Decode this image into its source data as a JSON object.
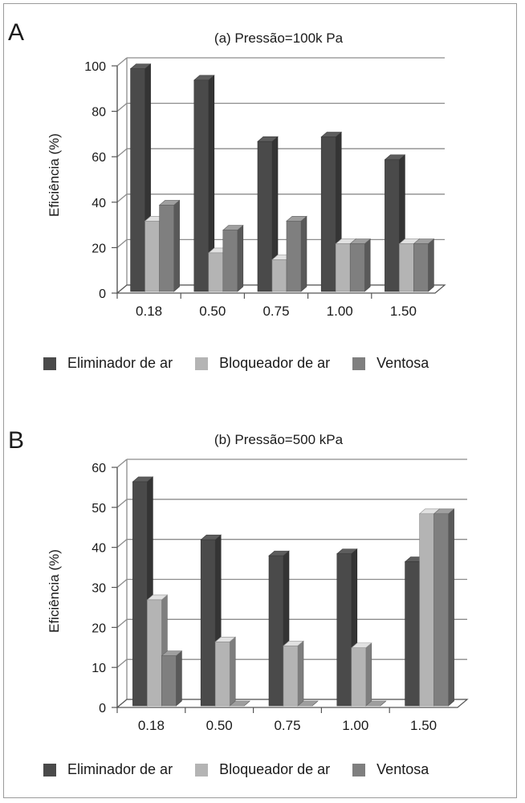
{
  "chart_data": [
    {
      "type": "bar",
      "panel_letter": "A",
      "title": "(a) Pressão=100k Pa",
      "ylabel": "Eficiência (%)",
      "xlabel": "",
      "ylim": [
        0,
        100
      ],
      "yticks": [
        0,
        20,
        40,
        60,
        80,
        100
      ],
      "grid": true,
      "legend_position": "bottom",
      "categories": [
        "0.18",
        "0.50",
        "0.75",
        "1.00",
        "1.50"
      ],
      "series": [
        {
          "name": "Eliminador de ar",
          "color": "#4a4a4a",
          "values": [
            98,
            93,
            66,
            68,
            58
          ]
        },
        {
          "name": "Bloqueador de ar",
          "color": "#b4b4b4",
          "values": [
            31,
            17,
            14,
            21,
            21
          ]
        },
        {
          "name": "Ventosa",
          "color": "#7f7f7f",
          "values": [
            38,
            27,
            31,
            21,
            21
          ]
        }
      ]
    },
    {
      "type": "bar",
      "panel_letter": "B",
      "title": "(b) Pressão=500 kPa",
      "ylabel": "Eficiência (%)",
      "xlabel": "",
      "ylim": [
        0,
        60
      ],
      "yticks": [
        0,
        10,
        20,
        30,
        40,
        50,
        60
      ],
      "grid": true,
      "legend_position": "bottom",
      "categories": [
        "0.18",
        "0.50",
        "0.75",
        "1.00",
        "1.50"
      ],
      "series": [
        {
          "name": "Eliminador de ar",
          "color": "#4a4a4a",
          "values": [
            56,
            41.5,
            37.5,
            38,
            36
          ]
        },
        {
          "name": "Bloqueador de ar",
          "color": "#b4b4b4",
          "values": [
            26.5,
            16,
            15,
            14.5,
            48
          ]
        },
        {
          "name": "Ventosa",
          "color": "#7f7f7f",
          "values": [
            12.5,
            0,
            0,
            0,
            48
          ]
        }
      ]
    }
  ]
}
